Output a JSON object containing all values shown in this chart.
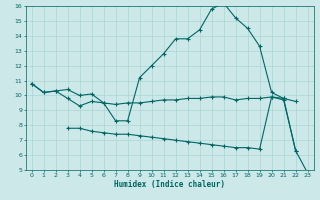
{
  "xlabel": "Humidex (Indice chaleur)",
  "x": [
    0,
    1,
    2,
    3,
    4,
    5,
    6,
    7,
    8,
    9,
    10,
    11,
    12,
    13,
    14,
    15,
    16,
    17,
    18,
    19,
    20,
    21,
    22,
    23
  ],
  "line1": [
    10.8,
    10.2,
    10.3,
    10.4,
    10.0,
    10.1,
    9.5,
    9.4,
    9.5,
    9.5,
    9.6,
    9.7,
    9.7,
    9.8,
    9.8,
    9.9,
    9.9,
    9.7,
    9.8,
    9.8,
    9.9,
    9.8,
    9.6,
    null
  ],
  "line2": [
    10.8,
    10.2,
    10.3,
    9.8,
    9.3,
    9.6,
    9.5,
    8.3,
    8.3,
    11.2,
    12.0,
    12.8,
    13.8,
    13.8,
    14.4,
    15.8,
    16.2,
    15.2,
    14.5,
    13.3,
    10.2,
    9.8,
    6.3,
    null
  ],
  "line3": [
    null,
    null,
    null,
    7.8,
    7.8,
    7.6,
    7.5,
    7.4,
    7.4,
    7.3,
    7.2,
    7.1,
    7.0,
    6.9,
    6.8,
    6.7,
    6.6,
    6.5,
    6.5,
    6.4,
    9.9,
    9.7,
    6.3,
    4.8
  ],
  "bg_color": "#cce8e8",
  "line_color": "#006666",
  "grid_color": "#aad4d4",
  "xlim": [
    -0.5,
    23.5
  ],
  "ylim": [
    5,
    16
  ],
  "yticks": [
    5,
    6,
    7,
    8,
    9,
    10,
    11,
    12,
    13,
    14,
    15,
    16
  ],
  "xticks": [
    0,
    1,
    2,
    3,
    4,
    5,
    6,
    7,
    8,
    9,
    10,
    11,
    12,
    13,
    14,
    15,
    16,
    17,
    18,
    19,
    20,
    21,
    22,
    23
  ]
}
